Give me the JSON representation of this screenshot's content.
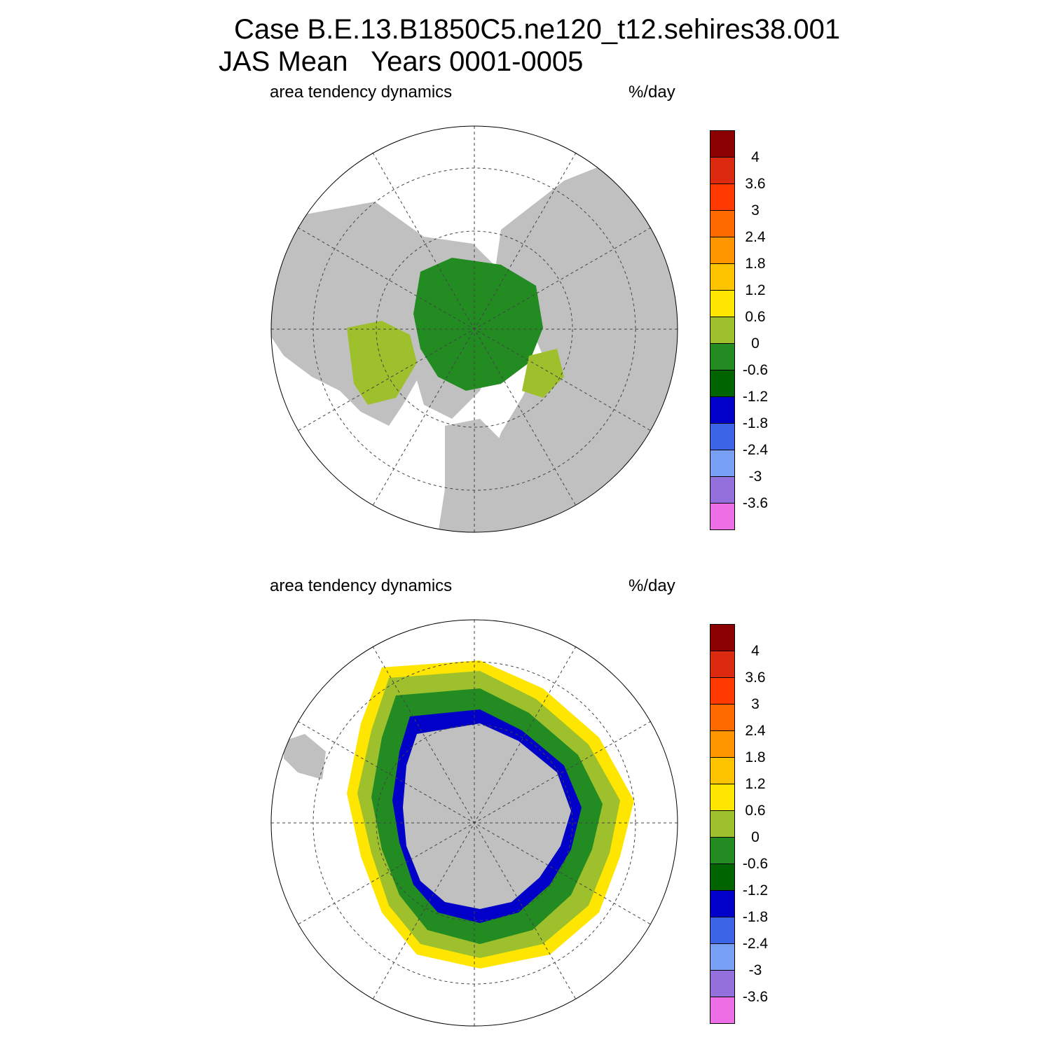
{
  "title": {
    "line1": "Case B.E.13.B1850C5.ne120_t12.sehires38.001",
    "line2": "JAS Mean   Years 0001-0005"
  },
  "panels": [
    {
      "id": "north",
      "hemisphere": "Northern",
      "variable_label": "area tendency dynamics",
      "units_label": "%/day"
    },
    {
      "id": "south",
      "hemisphere": "Southern",
      "variable_label": "area tendency dynamics",
      "units_label": "%/day"
    }
  ],
  "colorbar": {
    "levels": [
      "4",
      "3.6",
      "3",
      "2.4",
      "1.8",
      "1.2",
      "0.6",
      "0",
      "-0.6",
      "-1.2",
      "-1.8",
      "-2.4",
      "-3",
      "-3.6"
    ],
    "colors": [
      "#8b0000",
      "#dc2a10",
      "#ff3a00",
      "#ff6a00",
      "#ff9600",
      "#ffc400",
      "#ffe600",
      "#9ec02c",
      "#228b22",
      "#006400",
      "#0000c8",
      "#3c64e6",
      "#78a0f5",
      "#9370db",
      "#ee6ee6"
    ]
  },
  "map_colors": {
    "land": "#c0c0c0",
    "ocean": "#ffffff",
    "grid": "#444444"
  }
}
